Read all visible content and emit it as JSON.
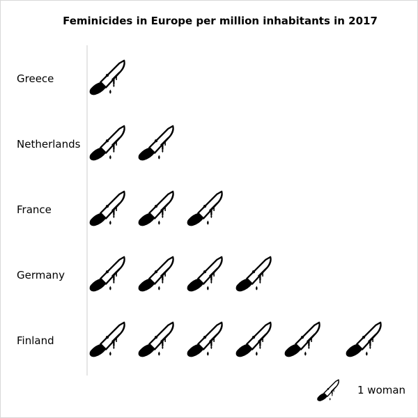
{
  "chart_data": {
    "type": "pictograph",
    "title": "Feminicides in Europe per million inhabitants in 2017",
    "categories": [
      "Greece",
      "Netherlands",
      "France",
      "Germany",
      "Finland"
    ],
    "values": [
      1,
      2,
      3,
      4,
      6
    ],
    "icon": "bloody-knife-icon",
    "legend": {
      "label": "1 woman",
      "icon": "bloody-knife-icon"
    },
    "colors": {
      "icon": "#000000",
      "blade": "#ffffff",
      "axis": "#cccccc"
    }
  }
}
